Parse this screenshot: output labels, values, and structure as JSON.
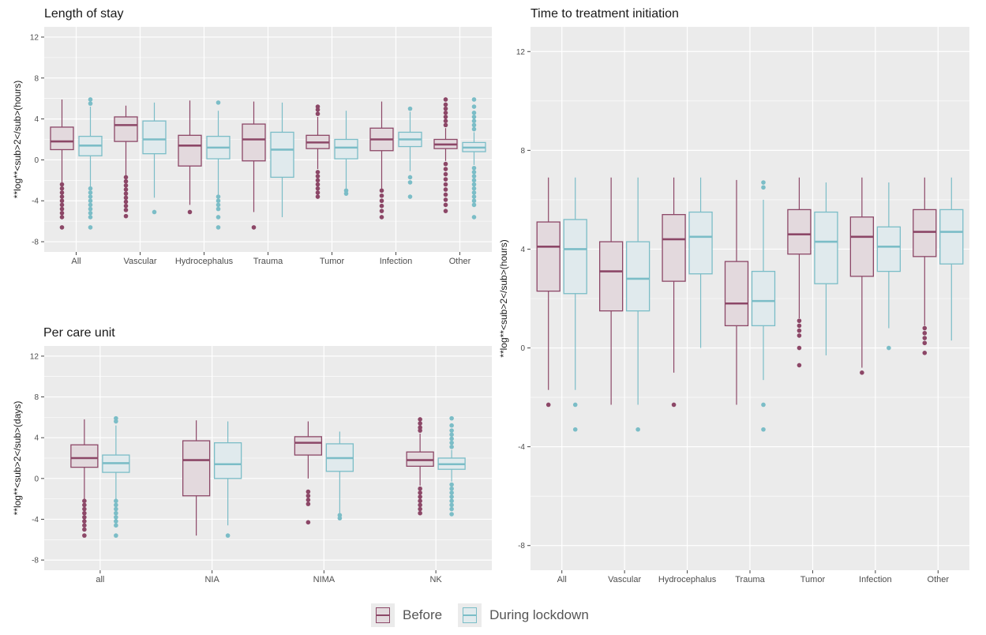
{
  "colors": {
    "before_stroke": "#8c4767",
    "before_fill": "#e3d9dd",
    "during_stroke": "#7bbdc7",
    "during_fill": "#e0eaed",
    "panel_bg": "#ebebeb",
    "grid": "#ffffff"
  },
  "legend": {
    "items": [
      {
        "label": "Before"
      },
      {
        "label": "During lockdown"
      }
    ]
  },
  "chart_data": [
    {
      "id": "los",
      "type": "box",
      "title": "Length of stay",
      "ylabel": "**log**<sub>2</sub>(hours)",
      "ylim": [
        -9,
        13
      ],
      "yticks": [
        -8,
        -4,
        0,
        4,
        8,
        12
      ],
      "categories": [
        "All",
        "Vascular",
        "Hydrocephalus",
        "Trauma",
        "Tumor",
        "Infection",
        "Other"
      ],
      "series": [
        {
          "name": "Before",
          "boxes": [
            {
              "min": -2.2,
              "q1": 1.0,
              "median": 1.8,
              "q3": 3.2,
              "max": 5.9,
              "outliers": [
                -2.4,
                -2.8,
                -3.2,
                -3.6,
                -4.0,
                -4.4,
                -4.8,
                -5.2,
                -5.6,
                -6.6
              ]
            },
            {
              "min": -1.5,
              "q1": 1.8,
              "median": 3.4,
              "q3": 4.2,
              "max": 5.3,
              "outliers": [
                -1.7,
                -2.1,
                -2.5,
                -2.9,
                -3.3,
                -3.7,
                -4.1,
                -4.5,
                -4.9,
                -5.5
              ]
            },
            {
              "min": -4.4,
              "q1": -0.6,
              "median": 1.4,
              "q3": 2.4,
              "max": 5.8,
              "outliers": [
                -5.1
              ]
            },
            {
              "min": -5.1,
              "q1": -0.1,
              "median": 2.0,
              "q3": 3.5,
              "max": 5.7,
              "outliers": [
                -6.6
              ]
            },
            {
              "min": -0.9,
              "q1": 1.1,
              "median": 1.7,
              "q3": 2.4,
              "max": 4.2,
              "outliers": [
                -1.2,
                -1.6,
                -2.0,
                -2.4,
                -2.8,
                -3.2,
                -3.6,
                4.5,
                4.9,
                5.2
              ]
            },
            {
              "min": -2.8,
              "q1": 0.9,
              "median": 2.0,
              "q3": 3.1,
              "max": 5.7,
              "outliers": [
                -3.0,
                -3.5,
                -4.0,
                -4.5,
                -5.0,
                -5.6
              ]
            },
            {
              "min": -0.1,
              "q1": 1.1,
              "median": 1.5,
              "q3": 2.0,
              "max": 3.1,
              "outliers": [
                -0.4,
                -0.9,
                -1.4,
                -1.9,
                -2.4,
                -2.9,
                -3.4,
                -3.9,
                -4.4,
                -5.0,
                3.4,
                3.8,
                4.2,
                4.6,
                5.0,
                5.4,
                5.9
              ]
            }
          ]
        },
        {
          "name": "During lockdown",
          "boxes": [
            {
              "min": -2.6,
              "q1": 0.4,
              "median": 1.4,
              "q3": 2.3,
              "max": 5.2,
              "outliers": [
                -2.8,
                -3.2,
                -3.6,
                -4.0,
                -4.4,
                -4.8,
                -5.2,
                -5.6,
                -6.6,
                5.5,
                5.9
              ]
            },
            {
              "min": -3.7,
              "q1": 0.6,
              "median": 2.0,
              "q3": 3.8,
              "max": 5.6,
              "outliers": [
                -5.1
              ]
            },
            {
              "min": -3.4,
              "q1": 0.1,
              "median": 1.2,
              "q3": 2.3,
              "max": 4.8,
              "outliers": [
                -3.6,
                -4.0,
                -4.4,
                -4.8,
                -5.6,
                -6.6,
                5.6
              ]
            },
            {
              "min": -5.6,
              "q1": -1.7,
              "median": 1.0,
              "q3": 2.7,
              "max": 5.6,
              "outliers": []
            },
            {
              "min": -2.8,
              "q1": 0.1,
              "median": 1.2,
              "q3": 2.0,
              "max": 4.8,
              "outliers": [
                -3.0,
                -3.3
              ]
            },
            {
              "min": -1.1,
              "q1": 1.3,
              "median": 2.0,
              "q3": 2.7,
              "max": 4.7,
              "outliers": [
                -1.7,
                -2.2,
                -3.6,
                5.0
              ]
            },
            {
              "min": -0.5,
              "q1": 0.8,
              "median": 1.2,
              "q3": 1.7,
              "max": 2.7,
              "outliers": [
                -0.8,
                -1.2,
                -1.6,
                -2.0,
                -2.4,
                -2.8,
                -3.2,
                -3.6,
                -4.0,
                -4.4,
                -5.6,
                3.0,
                3.4,
                3.8,
                4.2,
                4.6,
                5.2,
                5.9
              ]
            }
          ]
        }
      ]
    },
    {
      "id": "pcu",
      "type": "box",
      "title": "Per care unit",
      "ylabel": "**log**<sub>2</sub>(days)",
      "ylim": [
        -9,
        13
      ],
      "yticks": [
        -8,
        -4,
        0,
        4,
        8,
        12
      ],
      "categories": [
        "all",
        "NIA",
        "NIMA",
        "NK"
      ],
      "series": [
        {
          "name": "Before",
          "boxes": [
            {
              "min": -2.0,
              "q1": 1.1,
              "median": 2.0,
              "q3": 3.3,
              "max": 5.8,
              "outliers": [
                -2.2,
                -2.6,
                -3.0,
                -3.4,
                -3.8,
                -4.2,
                -4.6,
                -5.0,
                -5.6
              ]
            },
            {
              "min": -5.6,
              "q1": -1.7,
              "median": 1.8,
              "q3": 3.7,
              "max": 5.7,
              "outliers": []
            },
            {
              "min": 0.0,
              "q1": 2.3,
              "median": 3.5,
              "q3": 4.1,
              "max": 5.6,
              "outliers": [
                -1.3,
                -1.7,
                -2.1,
                -2.5,
                -4.3
              ]
            },
            {
              "min": -0.7,
              "q1": 1.2,
              "median": 1.8,
              "q3": 2.6,
              "max": 4.4,
              "outliers": [
                -1.0,
                -1.4,
                -1.8,
                -2.2,
                -2.6,
                -3.0,
                -3.4,
                4.7,
                5.0,
                5.4,
                5.8
              ]
            }
          ]
        },
        {
          "name": "During lockdown",
          "boxes": [
            {
              "min": -2.0,
              "q1": 0.6,
              "median": 1.5,
              "q3": 2.3,
              "max": 5.2,
              "outliers": [
                -2.2,
                -2.6,
                -3.0,
                -3.4,
                -3.8,
                -4.2,
                -4.6,
                -5.6,
                5.6,
                5.9
              ]
            },
            {
              "min": -4.6,
              "q1": 0.0,
              "median": 1.4,
              "q3": 3.5,
              "max": 5.6,
              "outliers": [
                -5.6
              ]
            },
            {
              "min": -3.4,
              "q1": 0.7,
              "median": 2.0,
              "q3": 3.4,
              "max": 4.6,
              "outliers": [
                -3.6,
                -3.9
              ]
            },
            {
              "min": -0.3,
              "q1": 0.9,
              "median": 1.4,
              "q3": 2.0,
              "max": 2.8,
              "outliers": [
                -0.6,
                -1.0,
                -1.4,
                -1.8,
                -2.2,
                -2.6,
                -3.0,
                -3.5,
                3.1,
                3.5,
                3.9,
                4.3,
                4.7,
                5.2,
                5.9
              ]
            }
          ]
        }
      ]
    },
    {
      "id": "ttt",
      "type": "box",
      "title": "Time to treatment initiation",
      "ylabel": "**log**<sub>2</sub>(hours)",
      "ylim": [
        -9,
        13
      ],
      "yticks": [
        -8,
        -4,
        0,
        4,
        8,
        12
      ],
      "categories": [
        "All",
        "Vascular",
        "Hydrocephalus",
        "Trauma",
        "Tumor",
        "Infection",
        "Other"
      ],
      "series": [
        {
          "name": "Before",
          "boxes": [
            {
              "min": -1.7,
              "q1": 2.3,
              "median": 4.1,
              "q3": 5.1,
              "max": 6.9,
              "outliers": [
                -2.3
              ]
            },
            {
              "min": -2.3,
              "q1": 1.5,
              "median": 3.1,
              "q3": 4.3,
              "max": 6.9,
              "outliers": []
            },
            {
              "min": -1.0,
              "q1": 2.7,
              "median": 4.4,
              "q3": 5.4,
              "max": 6.9,
              "outliers": [
                -2.3
              ]
            },
            {
              "min": -2.3,
              "q1": 0.9,
              "median": 1.8,
              "q3": 3.5,
              "max": 6.8,
              "outliers": []
            },
            {
              "min": 1.2,
              "q1": 3.8,
              "median": 4.6,
              "q3": 5.6,
              "max": 6.9,
              "outliers": [
                1.1,
                0.9,
                0.7,
                0.5,
                0.0,
                -0.7
              ]
            },
            {
              "min": -0.8,
              "q1": 2.9,
              "median": 4.5,
              "q3": 5.3,
              "max": 6.9,
              "outliers": [
                -1.0
              ]
            },
            {
              "min": 0.9,
              "q1": 3.7,
              "median": 4.7,
              "q3": 5.6,
              "max": 6.9,
              "outliers": [
                0.8,
                0.6,
                0.4,
                0.2,
                -0.2
              ]
            }
          ]
        },
        {
          "name": "During lockdown",
          "boxes": [
            {
              "min": -1.7,
              "q1": 2.2,
              "median": 4.0,
              "q3": 5.2,
              "max": 6.9,
              "outliers": [
                -2.3,
                -3.3
              ]
            },
            {
              "min": -2.3,
              "q1": 1.5,
              "median": 2.8,
              "q3": 4.3,
              "max": 6.9,
              "outliers": [
                -3.3
              ]
            },
            {
              "min": 0.0,
              "q1": 3.0,
              "median": 4.5,
              "q3": 5.5,
              "max": 6.9,
              "outliers": []
            },
            {
              "min": -1.3,
              "q1": 0.9,
              "median": 1.9,
              "q3": 3.1,
              "max": 6.0,
              "outliers": [
                -2.3,
                -3.3,
                6.5,
                6.7
              ]
            },
            {
              "min": -0.3,
              "q1": 2.6,
              "median": 4.3,
              "q3": 5.5,
              "max": 6.7,
              "outliers": []
            },
            {
              "min": 0.8,
              "q1": 3.1,
              "median": 4.1,
              "q3": 4.9,
              "max": 6.7,
              "outliers": [
                0.0
              ]
            },
            {
              "min": 0.3,
              "q1": 3.4,
              "median": 4.7,
              "q3": 5.6,
              "max": 6.9,
              "outliers": []
            }
          ]
        }
      ]
    }
  ]
}
